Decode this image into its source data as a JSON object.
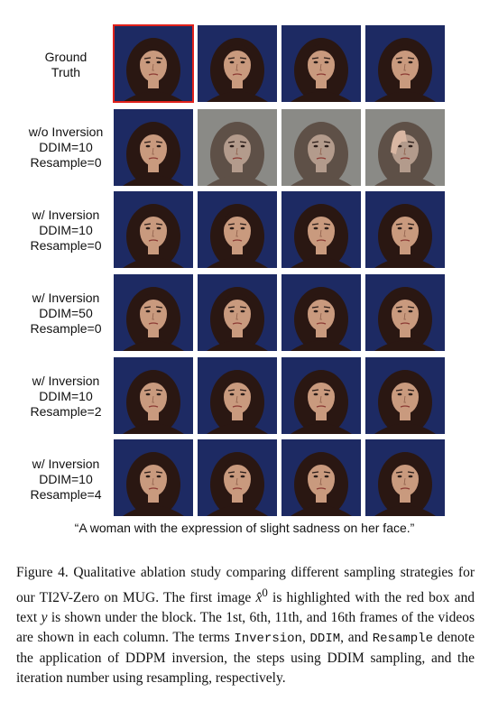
{
  "rows": [
    {
      "lines": [
        "Ground",
        "Truth"
      ],
      "frames": [
        "ground-truth",
        "ground-truth",
        "ground-truth",
        "ground-truth"
      ]
    },
    {
      "lines": [
        "w/o Inversion",
        "DDIM=10",
        "Resample=0"
      ],
      "frames": [
        "no-inversion-1",
        "no-inversion-6",
        "no-inversion-11",
        "no-inversion-16"
      ]
    },
    {
      "lines": [
        "w/ Inversion",
        "DDIM=10",
        "Resample=0"
      ],
      "frames": [
        "inv-ddim10-r0-1",
        "inv-ddim10-r0-6",
        "inv-ddim10-r0-11",
        "inv-ddim10-r0-16"
      ]
    },
    {
      "lines": [
        "w/ Inversion",
        "DDIM=50",
        "Resample=0"
      ],
      "frames": [
        "inv-ddim50-r0-1",
        "inv-ddim50-r0-6",
        "inv-ddim50-r0-11",
        "inv-ddim50-r0-16"
      ]
    },
    {
      "lines": [
        "w/ Inversion",
        "DDIM=10",
        "Resample=2"
      ],
      "frames": [
        "inv-ddim10-r2-1",
        "inv-ddim10-r2-6",
        "inv-ddim10-r2-11",
        "inv-ddim10-r2-16"
      ]
    },
    {
      "lines": [
        "w/ Inversion",
        "DDIM=10",
        "Resample=4"
      ],
      "frames": [
        "inv-ddim10-r4-1",
        "inv-ddim10-r4-6",
        "inv-ddim10-r4-11",
        "inv-ddim10-r4-16"
      ]
    }
  ],
  "prompt": "“A woman with the expression of slight sadness on her face.”",
  "caption": {
    "p1": "Figure 4. Qualitative ablation study comparing different sampling strategies for our TI2V-Zero on MUG. The first image ",
    "math_x": "x̂",
    "math_sup": "0",
    "p2": " is highlighted with the red box and text ",
    "math_y": "y",
    "p3": " is shown under the block. The 1st, 6th, 11th, and 16th frames of the videos are shown in each column. The terms ",
    "term1": "Inversion",
    "sep1": ", ",
    "term2": "DDIM",
    "sep2": ", and ",
    "term3": "Resample",
    "p4": " denote the application of DDPM inversion, the steps using DDIM sampling, and the iteration number using resampling, respectively."
  },
  "colors": {
    "background_blue": "#1d2a63",
    "hazy_gray": "#8a8a86",
    "highlight_red": "#e0211b"
  }
}
